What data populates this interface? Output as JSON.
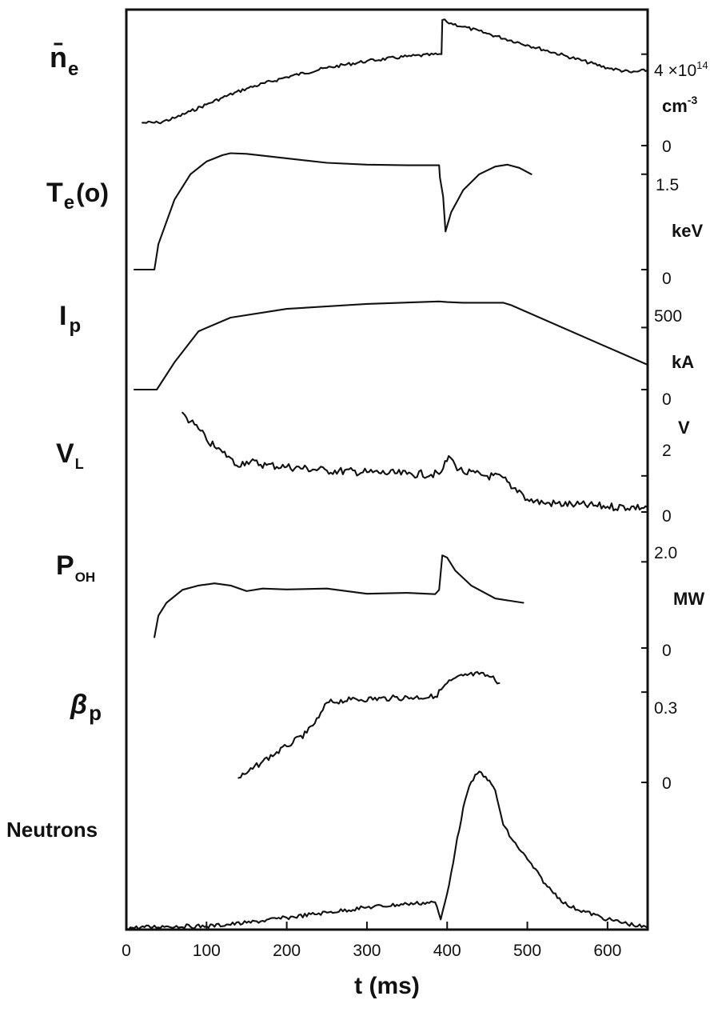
{
  "chart_data": {
    "type": "line",
    "layout": "stacked-panels",
    "x_axis": {
      "label": "t (ms)",
      "range": [
        0,
        650
      ],
      "ticks": [
        "0",
        "100",
        "200",
        "300",
        "400",
        "500",
        "600"
      ]
    },
    "panels": [
      {
        "id": "ne",
        "label_main": "n̄",
        "label_sub": "e",
        "right_labels": [
          "4 ×10",
          "14",
          "cm",
          "-3",
          "0"
        ],
        "y_range": [
          0,
          5.6
        ],
        "y_ticks": [
          0,
          4
        ],
        "scale_note": "×10^14 cm^-3",
        "points": [
          [
            20,
            1.0
          ],
          [
            40,
            1.0
          ],
          [
            60,
            1.2
          ],
          [
            80,
            1.5
          ],
          [
            100,
            1.8
          ],
          [
            120,
            2.1
          ],
          [
            150,
            2.5
          ],
          [
            200,
            3.0
          ],
          [
            250,
            3.4
          ],
          [
            300,
            3.7
          ],
          [
            350,
            3.9
          ],
          [
            393,
            4.0
          ],
          [
            394,
            5.5
          ],
          [
            400,
            5.4
          ],
          [
            420,
            5.2
          ],
          [
            450,
            4.9
          ],
          [
            500,
            4.4
          ],
          [
            550,
            3.9
          ],
          [
            600,
            3.4
          ],
          [
            630,
            3.2
          ],
          [
            650,
            3.3
          ]
        ]
      },
      {
        "id": "te",
        "label_main": "T",
        "label_sub": "e",
        "label_after": "(o)",
        "right_labels": [
          "1.5",
          "keV",
          "0"
        ],
        "y_range": [
          0,
          1.95
        ],
        "y_ticks": [
          0,
          1.5
        ],
        "unit": "keV",
        "points": [
          [
            10,
            0.0
          ],
          [
            35,
            0.0
          ],
          [
            40,
            0.4
          ],
          [
            60,
            1.1
          ],
          [
            80,
            1.5
          ],
          [
            100,
            1.7
          ],
          [
            120,
            1.8
          ],
          [
            130,
            1.83
          ],
          [
            150,
            1.82
          ],
          [
            200,
            1.75
          ],
          [
            250,
            1.68
          ],
          [
            300,
            1.65
          ],
          [
            350,
            1.64
          ],
          [
            390,
            1.64
          ],
          [
            391,
            1.45
          ],
          [
            395,
            1.15
          ],
          [
            398,
            0.6
          ],
          [
            405,
            0.9
          ],
          [
            420,
            1.25
          ],
          [
            440,
            1.5
          ],
          [
            460,
            1.62
          ],
          [
            475,
            1.65
          ],
          [
            490,
            1.6
          ],
          [
            505,
            1.5
          ]
        ]
      },
      {
        "id": "ip",
        "label_main": "I",
        "label_sub": "p",
        "right_labels": [
          "500",
          "kA",
          "0"
        ],
        "y_range": [
          0,
          870
        ],
        "y_ticks": [
          0,
          500
        ],
        "unit": "kA",
        "points": [
          [
            10,
            0
          ],
          [
            38,
            0
          ],
          [
            60,
            220
          ],
          [
            90,
            470
          ],
          [
            130,
            580
          ],
          [
            200,
            650
          ],
          [
            300,
            690
          ],
          [
            390,
            710
          ],
          [
            400,
            705
          ],
          [
            420,
            700
          ],
          [
            470,
            700
          ],
          [
            480,
            680
          ],
          [
            650,
            200
          ]
        ]
      },
      {
        "id": "vl",
        "label_main": "V",
        "label_sub": "L",
        "right_labels": [
          "V",
          "2",
          "0"
        ],
        "y_range": [
          0,
          6.2
        ],
        "y_ticks": [
          0,
          2
        ],
        "unit": "V",
        "points": [
          [
            70,
            5.5
          ],
          [
            80,
            5.0
          ],
          [
            90,
            4.6
          ],
          [
            100,
            4.0
          ],
          [
            110,
            3.6
          ],
          [
            120,
            3.3
          ],
          [
            130,
            3.0
          ],
          [
            135,
            2.6
          ],
          [
            150,
            2.8
          ],
          [
            175,
            2.6
          ],
          [
            200,
            2.5
          ],
          [
            250,
            2.3
          ],
          [
            300,
            2.2
          ],
          [
            350,
            2.1
          ],
          [
            390,
            2.1
          ],
          [
            395,
            2.4
          ],
          [
            402,
            3.1
          ],
          [
            410,
            2.6
          ],
          [
            420,
            2.2
          ],
          [
            450,
            2.0
          ],
          [
            470,
            1.9
          ],
          [
            480,
            1.3
          ],
          [
            490,
            1.2
          ],
          [
            500,
            0.7
          ],
          [
            520,
            0.5
          ],
          [
            560,
            0.4
          ],
          [
            600,
            0.3
          ],
          [
            650,
            0.25
          ]
        ]
      },
      {
        "id": "poh",
        "label_main": "P",
        "label_sub": "OH",
        "right_labels": [
          "2.0",
          "MW",
          "0"
        ],
        "y_range": [
          0,
          2.6
        ],
        "y_ticks": [
          0,
          2.0
        ],
        "unit": "MW",
        "points": [
          [
            35,
            0.25
          ],
          [
            40,
            0.75
          ],
          [
            50,
            1.05
          ],
          [
            70,
            1.35
          ],
          [
            90,
            1.45
          ],
          [
            110,
            1.5
          ],
          [
            130,
            1.45
          ],
          [
            150,
            1.32
          ],
          [
            170,
            1.38
          ],
          [
            200,
            1.36
          ],
          [
            250,
            1.38
          ],
          [
            300,
            1.26
          ],
          [
            350,
            1.28
          ],
          [
            385,
            1.25
          ],
          [
            390,
            1.35
          ],
          [
            394,
            2.15
          ],
          [
            400,
            2.1
          ],
          [
            410,
            1.8
          ],
          [
            430,
            1.45
          ],
          [
            460,
            1.15
          ],
          [
            495,
            1.05
          ]
        ]
      },
      {
        "id": "betap",
        "label_main": "β",
        "label_sub": "p",
        "right_labels": [
          "0.3",
          "0"
        ],
        "y_range": [
          0,
          0.42
        ],
        "y_ticks": [
          0,
          0.3
        ],
        "points": [
          [
            140,
            0.015
          ],
          [
            150,
            0.03
          ],
          [
            170,
            0.07
          ],
          [
            200,
            0.12
          ],
          [
            225,
            0.165
          ],
          [
            240,
            0.215
          ],
          [
            250,
            0.265
          ],
          [
            280,
            0.275
          ],
          [
            330,
            0.28
          ],
          [
            385,
            0.285
          ],
          [
            400,
            0.33
          ],
          [
            420,
            0.355
          ],
          [
            440,
            0.36
          ],
          [
            455,
            0.35
          ],
          [
            465,
            0.33
          ]
        ]
      },
      {
        "id": "neutrons",
        "label_main": "Neutrons",
        "right_labels": [],
        "y_range": [
          0,
          1.0
        ],
        "units_note": "arbitrary",
        "points": [
          [
            0,
            0.0
          ],
          [
            50,
            0.01
          ],
          [
            100,
            0.01
          ],
          [
            150,
            0.03
          ],
          [
            200,
            0.06
          ],
          [
            250,
            0.09
          ],
          [
            300,
            0.12
          ],
          [
            350,
            0.14
          ],
          [
            385,
            0.15
          ],
          [
            392,
            0.05
          ],
          [
            400,
            0.2
          ],
          [
            410,
            0.45
          ],
          [
            420,
            0.7
          ],
          [
            430,
            0.85
          ],
          [
            440,
            0.91
          ],
          [
            448,
            0.88
          ],
          [
            460,
            0.8
          ],
          [
            470,
            0.6
          ],
          [
            480,
            0.52
          ],
          [
            500,
            0.4
          ],
          [
            525,
            0.24
          ],
          [
            550,
            0.13
          ],
          [
            600,
            0.05
          ],
          [
            650,
            0.0
          ]
        ]
      }
    ]
  }
}
